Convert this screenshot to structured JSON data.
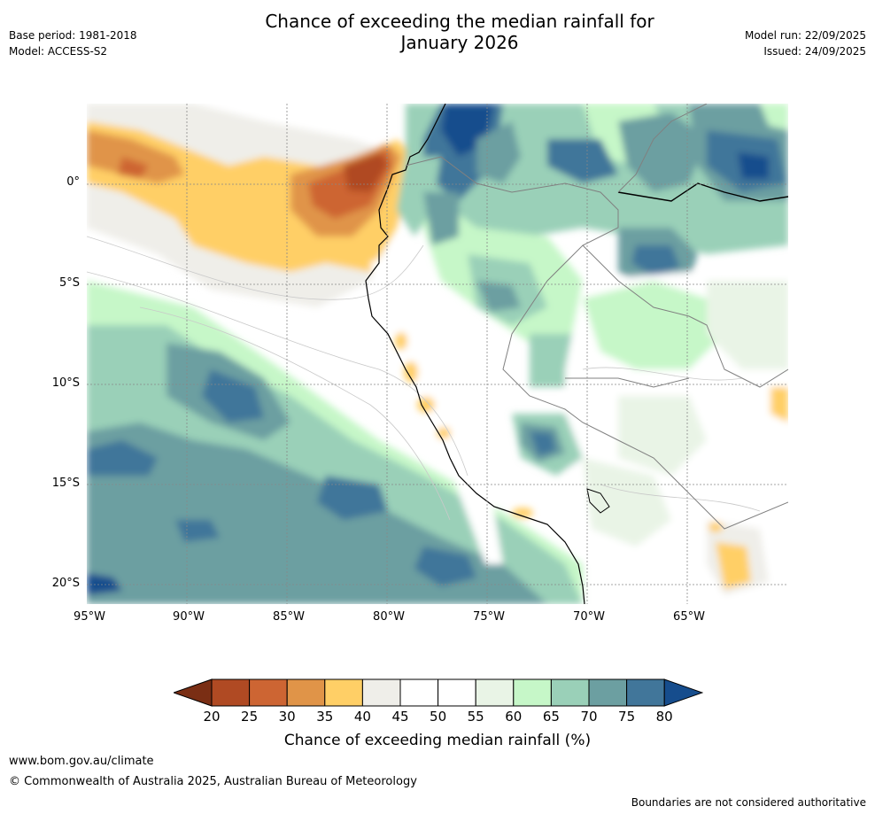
{
  "header": {
    "title_line1": "Chance of exceeding the median rainfall for",
    "title_line2": "January 2026",
    "base_period": "Base period: 1981-2018",
    "model": "Model: ACCESS-S2",
    "model_run": "Model run: 22/09/2025",
    "issued": "Issued: 24/09/2025"
  },
  "map": {
    "region": "Western South America and Eastern Pacific",
    "lat_labels": [
      "0°",
      "5°S",
      "10°S",
      "15°S",
      "20°S"
    ],
    "lat_values": [
      0,
      -5,
      -10,
      -15,
      -20
    ],
    "lon_labels": [
      "95°W",
      "90°W",
      "85°W",
      "80°W",
      "75°W",
      "70°W",
      "65°W"
    ],
    "lon_values": [
      -95,
      -90,
      -85,
      -80,
      -75,
      -70,
      -65
    ],
    "lon_range": [
      -95,
      -60
    ],
    "lat_range": [
      -21,
      4
    ]
  },
  "colorbar": {
    "ticks": [
      "20",
      "25",
      "30",
      "35",
      "40",
      "45",
      "50",
      "55",
      "60",
      "65",
      "70",
      "75",
      "80"
    ],
    "colors": [
      "#7a2e14",
      "#b04a23",
      "#cd6533",
      "#e09448",
      "#ffcf66",
      "#efeee9",
      "#ffffff",
      "#ffffff",
      "#e9f4e6",
      "#c6f7c8",
      "#9ad0b8",
      "#6c9fa1",
      "#41769a",
      "#164d8d"
    ],
    "label": "Chance of exceeding median rainfall (%)"
  },
  "footer": {
    "url": "www.bom.gov.au/climate",
    "copyright": "© Commonwealth of Australia 2025, Australian Bureau of Meteorology",
    "note": "Boundaries are not considered authoritative"
  }
}
